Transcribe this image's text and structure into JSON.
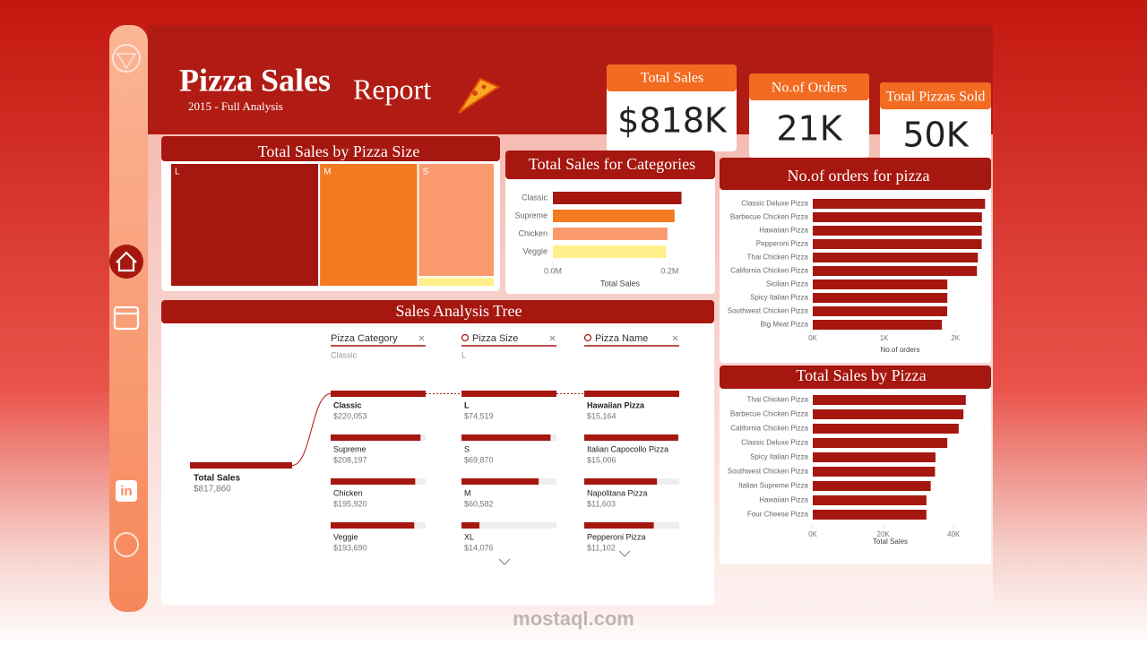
{
  "header": {
    "title_parts": [
      "Pizza Sales",
      "Report"
    ],
    "subtitle": "2015 - Full Analysis"
  },
  "kpis": [
    {
      "label": "Total Sales",
      "value": "$818K"
    },
    {
      "label": "No.of Orders",
      "value": "21K"
    },
    {
      "label": "Total Pizzas Sold",
      "value": "50K"
    }
  ],
  "sidebar": {
    "linkedin": "in"
  },
  "watermark": "mostaql.com",
  "chart_data": [
    {
      "type": "treemap",
      "title": "Total Sales by Pizza Size",
      "categories": [
        "L",
        "M",
        "S",
        null
      ],
      "values": [
        375319,
        249382,
        178076,
        15083
      ],
      "colors": [
        "#a5170f",
        "#f47a20",
        "#fb9a6e",
        "#fdf08a"
      ]
    },
    {
      "type": "hbar",
      "title": "Total Sales for Categories",
      "categories": [
        "Classic",
        "Supreme",
        "Chicken",
        "Veggie"
      ],
      "values": [
        220053,
        208197,
        195920,
        193690
      ],
      "colors": [
        "#a5170f",
        "#f47a20",
        "#fb9a6e",
        "#fdf08a"
      ],
      "xlim": [
        0,
        230000
      ],
      "xticks": [
        {
          "value": 0,
          "label": "0.0M"
        },
        {
          "value": 200000,
          "label": "0.2M"
        }
      ],
      "xlabel": "Total Sales"
    },
    {
      "type": "hbar",
      "title": "No.of orders for pizza",
      "categories": [
        "Classic Deluxe Pizza",
        "Barbecue Chicken Pizza",
        "Hawaiian Pizza",
        "Pepperoni Pizza",
        "Thai Chicken Pizza",
        "California Chicken Pizza",
        "Sicilian Pizza",
        "Spicy Italian Pizza",
        "Southwest Chicken Pizza",
        "Big Meat Pizza"
      ],
      "values": [
        2416,
        2372,
        2370,
        2369,
        2315,
        2302,
        1887,
        1887,
        1885,
        1811
      ],
      "color": "#a5170f",
      "xlim": [
        0,
        2450
      ],
      "xticks": [
        {
          "value": 0,
          "label": "0K"
        },
        {
          "value": 1000,
          "label": "1K"
        },
        {
          "value": 2000,
          "label": "2K"
        }
      ],
      "xlabel": "No.of orders"
    },
    {
      "type": "tree",
      "title": "Sales Analysis Tree",
      "root": {
        "name": "Total Sales",
        "value": 817860,
        "value_label": "$817,860"
      },
      "levels": [
        {
          "name": "Pizza Category",
          "selected": "Classic",
          "categories": [
            "Classic",
            "Supreme",
            "Chicken",
            "Veggie"
          ],
          "values": [
            220053,
            208197,
            195920,
            193690
          ],
          "value_labels": [
            "$220,053",
            "$208,197",
            "$195,920",
            "$193,690"
          ]
        },
        {
          "name": "Pizza Size",
          "selected": "L",
          "categories": [
            "L",
            "S",
            "M",
            "XL"
          ],
          "values": [
            74519,
            69870,
            60582,
            14076
          ],
          "value_labels": [
            "$74,519",
            "$69,870",
            "$60,582",
            "$14,076"
          ]
        },
        {
          "name": "Pizza Name",
          "categories": [
            "Hawaiian Pizza",
            "Italian Capocollo Pizza",
            "Napolitana Pizza",
            "Pepperoni Pizza"
          ],
          "values": [
            15164,
            15006,
            11603,
            11102
          ],
          "value_labels": [
            "$15,164",
            "$15,006",
            "$11,603",
            "$11,102"
          ]
        }
      ]
    },
    {
      "type": "hbar",
      "title": "Total Sales by Pizza",
      "categories": [
        "Thai Chicken Pizza",
        "Barbecue Chicken Pizza",
        "California Chicken Pizza",
        "Classic Deluxe Pizza",
        "Spicy Italian Pizza",
        "Southwest Chicken Pizza",
        "Italian Supreme Pizza",
        "Hawaiian Pizza",
        "Four Cheese Pizza"
      ],
      "values": [
        43434,
        42768,
        41410,
        38180,
        34831,
        34706,
        33477,
        32273,
        32265
      ],
      "color": "#a5170f",
      "xlim": [
        0,
        44000
      ],
      "xticks": [
        {
          "value": 0,
          "label": "0K"
        },
        {
          "value": 20000,
          "label": "20K"
        },
        {
          "value": 40000,
          "label": "40K"
        }
      ],
      "xlabel": "Total Sales"
    }
  ]
}
